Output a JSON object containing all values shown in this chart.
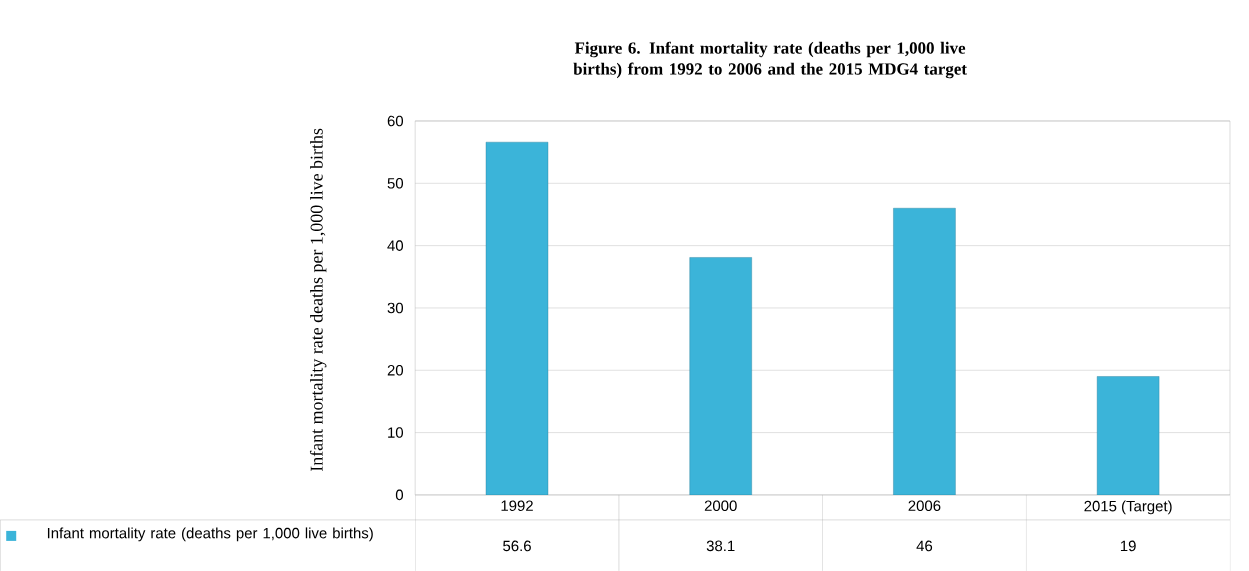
{
  "chart_data": {
    "type": "bar",
    "title": "Figure 6. Infant mortality rate (deaths per 1,000 live births) from 1992 to 2006 and the 2015 MDG4 target",
    "ylabel": "Infant mortality rate deaths per 1,000 live births",
    "categories": [
      "1992",
      "2000",
      "2006",
      "2015 (Target)"
    ],
    "series": [
      {
        "name": "Infant mortality rate (deaths per 1,000 live births)",
        "color": "#3bb4d9",
        "values": [
          56.6,
          38.1,
          46,
          19
        ]
      }
    ],
    "ylim": [
      0,
      60
    ],
    "yticks": [
      0,
      10,
      20,
      30,
      40,
      50,
      60
    ],
    "grid": "y",
    "data_labels": true,
    "legend": "bottom"
  }
}
